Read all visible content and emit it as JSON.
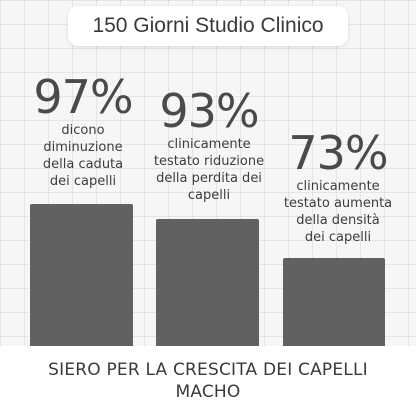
{
  "title": "150 Giorni Studio Clinico",
  "stats": [
    {
      "percent": "97%",
      "value": 97,
      "lines": [
        "dicono",
        "diminuzione",
        "della caduta",
        "dei capelli"
      ]
    },
    {
      "percent": "93%",
      "value": 93,
      "lines": [
        "clinicamente",
        "testato riduzione",
        "della perdita dei",
        "capelli"
      ]
    },
    {
      "percent": "73%",
      "value": 73,
      "lines": [
        "clinicamente",
        "testato aumenta",
        "della densità",
        "dei capelli"
      ]
    }
  ],
  "footer": {
    "line1": "SIERO PER LA CRESCITA DEI CAPELLI",
    "line2": "MACHO"
  },
  "colors": {
    "bar": "#616161",
    "background": "#f6f6f6",
    "footer_background": "#ffffff"
  }
}
